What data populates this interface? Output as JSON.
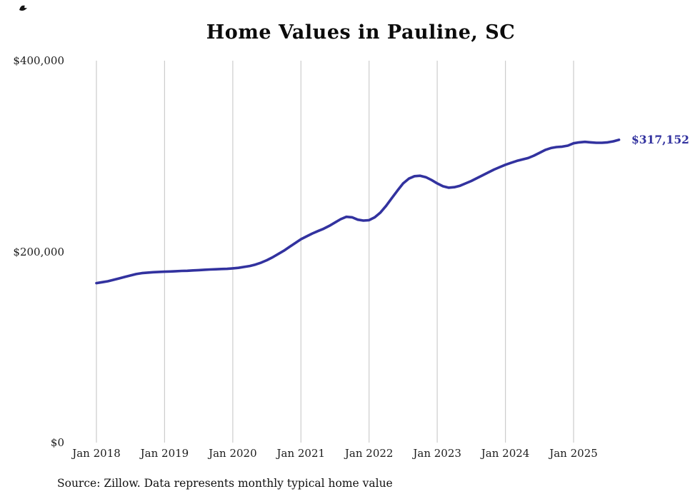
{
  "title": "Home Values in Pauline, SC",
  "source_note": "Source: Zillow. Data represents monthly typical home value",
  "colors": {
    "line": "#32329f",
    "grid": "#cccccc",
    "end_label": "#32329f",
    "text": "#1c1c1c"
  },
  "chart_data": {
    "type": "line",
    "title": "Home Values in Pauline, SC",
    "xlabel": "",
    "ylabel": "",
    "ylim": [
      0,
      400000
    ],
    "grid": "vertical-only",
    "x_tick_labels": [
      "Jan 2018",
      "Jan 2019",
      "Jan 2020",
      "Jan 2021",
      "Jan 2022",
      "Jan 2023",
      "Jan 2024",
      "Jan 2025"
    ],
    "y_tick_labels": [
      "$0",
      "$200,000",
      "$400,000"
    ],
    "series_name": "Typical home value (monthly)",
    "x_start": "Jan 2018",
    "x_end": "Sep 2025",
    "points_per_year": 12,
    "values": [
      167000,
      168000,
      169000,
      170500,
      172000,
      173500,
      175000,
      176500,
      177500,
      178000,
      178500,
      178800,
      179000,
      179200,
      179500,
      179800,
      180000,
      180300,
      180600,
      181000,
      181300,
      181500,
      181800,
      182000,
      182500,
      183000,
      184000,
      185000,
      186500,
      188500,
      191000,
      194000,
      197500,
      201000,
      205000,
      209000,
      213000,
      216000,
      219000,
      221500,
      224000,
      227000,
      230500,
      234000,
      236500,
      236000,
      233500,
      232500,
      233000,
      236000,
      241000,
      248000,
      256000,
      264000,
      271500,
      276500,
      279000,
      279500,
      278000,
      275000,
      271500,
      268500,
      267000,
      267500,
      269000,
      271500,
      274000,
      277000,
      280000,
      283000,
      286000,
      288500,
      291000,
      293000,
      295000,
      296500,
      298000,
      300500,
      303500,
      306500,
      308500,
      309500,
      310000,
      311000,
      313500,
      314500,
      315000,
      314500,
      314000,
      314000,
      314500,
      315500,
      317152
    ],
    "end_value": 317152,
    "end_value_label": "$317,152"
  }
}
